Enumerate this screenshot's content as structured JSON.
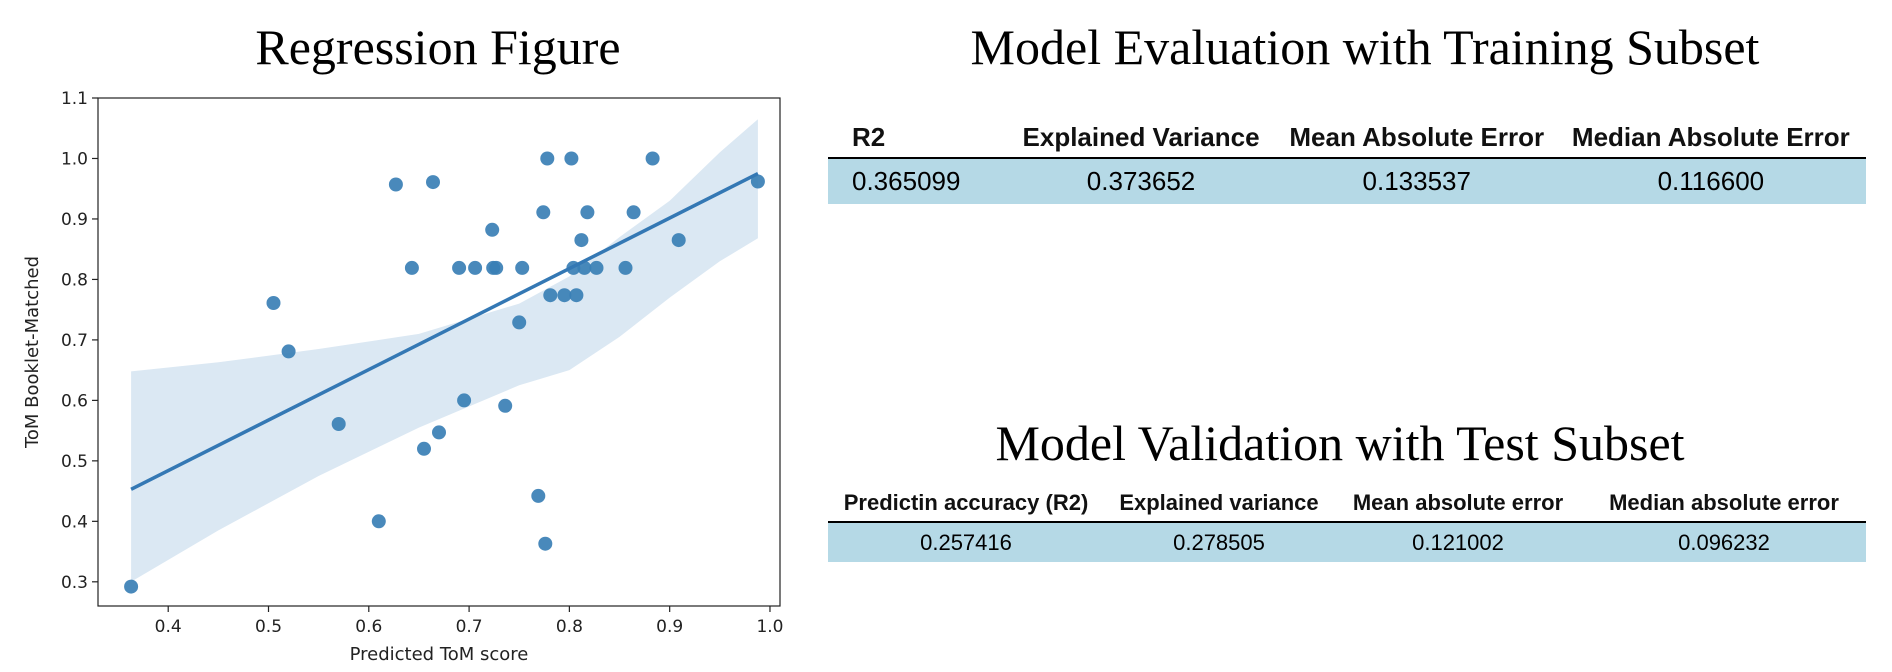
{
  "regression_title": "Regression Figure",
  "training_title": "Model Evaluation with Training Subset",
  "test_title": "Model Validation with Test Subset",
  "training_table": {
    "headers": [
      "R2",
      "Explained Variance",
      "Mean Absolute Error",
      "Median Absolute Error"
    ],
    "row": [
      "0.365099",
      "0.373652",
      "0.133537",
      "0.116600"
    ]
  },
  "test_table": {
    "headers": [
      "Predictin accuracy (R2)",
      "Explained variance",
      "Mean absolute error",
      "Median absolute error"
    ],
    "row": [
      "0.257416",
      "0.278505",
      "0.121002",
      "0.096232"
    ]
  },
  "colors": {
    "points": "#3a7fb5",
    "line": "#3478b4",
    "band": "#dbe8f3",
    "row_fill": "#b5d9e6"
  },
  "chart_data": {
    "type": "scatter",
    "xlabel": "Predicted ToM score",
    "ylabel": "ToM Booklet-Matched",
    "xlim": [
      0.33,
      1.01
    ],
    "ylim": [
      0.26,
      1.1
    ],
    "xticks": [
      0.4,
      0.5,
      0.6,
      0.7,
      0.8,
      0.9,
      1.0
    ],
    "xtick_labels": [
      "0.4",
      "0.5",
      "0.6",
      "0.7",
      "0.8",
      "0.9",
      "1.0"
    ],
    "yticks": [
      0.3,
      0.4,
      0.5,
      0.6,
      0.7,
      0.8,
      0.9,
      1.0,
      1.1
    ],
    "ytick_labels": [
      "0.3",
      "0.4",
      "0.5",
      "0.6",
      "0.7",
      "0.8",
      "0.9",
      "1.0",
      "1.1"
    ],
    "grid": false,
    "points": [
      {
        "x": 0.363,
        "y": 0.292
      },
      {
        "x": 0.505,
        "y": 0.761
      },
      {
        "x": 0.52,
        "y": 0.681
      },
      {
        "x": 0.57,
        "y": 0.561
      },
      {
        "x": 0.61,
        "y": 0.4
      },
      {
        "x": 0.627,
        "y": 0.957
      },
      {
        "x": 0.643,
        "y": 0.819
      },
      {
        "x": 0.655,
        "y": 0.52
      },
      {
        "x": 0.664,
        "y": 0.961
      },
      {
        "x": 0.67,
        "y": 0.547
      },
      {
        "x": 0.69,
        "y": 0.819
      },
      {
        "x": 0.695,
        "y": 0.6
      },
      {
        "x": 0.706,
        "y": 0.819
      },
      {
        "x": 0.723,
        "y": 0.882
      },
      {
        "x": 0.724,
        "y": 0.819
      },
      {
        "x": 0.727,
        "y": 0.819
      },
      {
        "x": 0.736,
        "y": 0.591
      },
      {
        "x": 0.75,
        "y": 0.729
      },
      {
        "x": 0.753,
        "y": 0.819
      },
      {
        "x": 0.769,
        "y": 0.442
      },
      {
        "x": 0.774,
        "y": 0.911
      },
      {
        "x": 0.776,
        "y": 0.363
      },
      {
        "x": 0.778,
        "y": 1.0
      },
      {
        "x": 0.781,
        "y": 0.774
      },
      {
        "x": 0.795,
        "y": 0.774
      },
      {
        "x": 0.802,
        "y": 1.0
      },
      {
        "x": 0.804,
        "y": 0.819
      },
      {
        "x": 0.807,
        "y": 0.774
      },
      {
        "x": 0.812,
        "y": 0.865
      },
      {
        "x": 0.815,
        "y": 0.819
      },
      {
        "x": 0.818,
        "y": 0.911
      },
      {
        "x": 0.827,
        "y": 0.819
      },
      {
        "x": 0.856,
        "y": 0.819
      },
      {
        "x": 0.864,
        "y": 0.911
      },
      {
        "x": 0.883,
        "y": 1.0
      },
      {
        "x": 0.909,
        "y": 0.865
      },
      {
        "x": 0.988,
        "y": 0.962
      }
    ],
    "regression_line": {
      "x": [
        0.363,
        0.988
      ],
      "y": [
        0.453,
        0.975
      ]
    },
    "confidence_band": {
      "x": [
        0.363,
        0.45,
        0.55,
        0.65,
        0.75,
        0.8,
        0.85,
        0.9,
        0.95,
        0.988
      ],
      "upper": [
        0.648,
        0.663,
        0.685,
        0.71,
        0.76,
        0.805,
        0.87,
        0.93,
        1.01,
        1.065
      ],
      "lower": [
        0.3,
        0.385,
        0.475,
        0.555,
        0.625,
        0.65,
        0.705,
        0.77,
        0.83,
        0.868
      ]
    }
  }
}
